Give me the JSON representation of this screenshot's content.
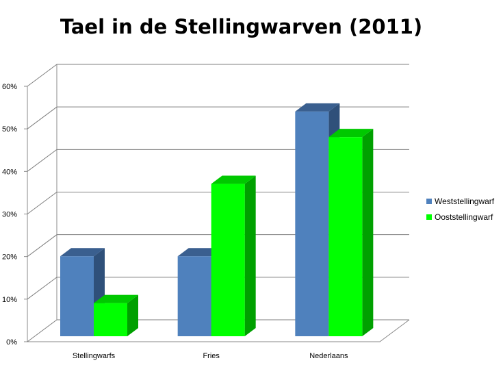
{
  "chart_data": {
    "type": "bar",
    "title": "Tael in de Stellingwarven (2011)",
    "categories": [
      "Stellingwarfs",
      "Fries",
      "Nederlaans"
    ],
    "series": [
      {
        "name": "Weststellingwarf",
        "values": [
          22,
          22,
          56
        ],
        "color": "#4f81bd"
      },
      {
        "name": "Ooststellingwarf",
        "values": [
          11,
          39,
          50
        ],
        "color": "#00ff00"
      }
    ],
    "yticks": [
      "0%",
      "10%",
      "20%",
      "30%",
      "40%",
      "50%",
      "60%"
    ],
    "ylim": [
      0,
      60
    ],
    "grid": true,
    "legend": "right",
    "xlabel": "",
    "ylabel": ""
  }
}
